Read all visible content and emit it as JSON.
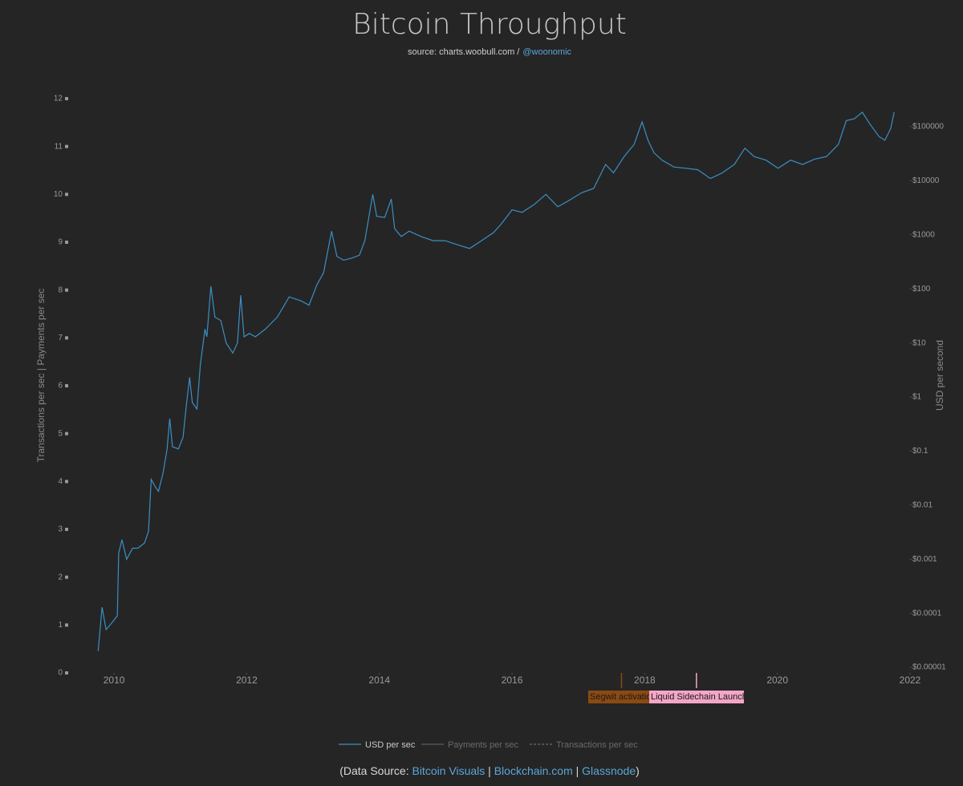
{
  "chart_data": {
    "type": "line",
    "title": "Bitcoin Throughput",
    "subtitle": "source: charts.woobull.com /",
    "subtitle_link": "@woonomic",
    "ylabel": "Transactions per sec  |  Payments per sec",
    "y2label": "USD per second",
    "xlim": [
      2009.43,
      2022
    ],
    "xticks": [
      2010,
      2012,
      2014,
      2016,
      2018,
      2020,
      2022
    ],
    "ylim": [
      0,
      12
    ],
    "yticks": [
      0,
      1,
      2,
      3,
      4,
      5,
      6,
      7,
      8,
      9,
      10,
      11,
      12
    ],
    "y2lim": [
      7.9e-06,
      330000
    ],
    "y2scale": "log",
    "y2ticks": [
      {
        "value": 1e-05,
        "label": "$0.00001"
      },
      {
        "value": 0.0001,
        "label": "$0.0001"
      },
      {
        "value": 0.001,
        "label": "$0.001"
      },
      {
        "value": 0.01,
        "label": "$0.01"
      },
      {
        "value": 0.1,
        "label": "$0.1"
      },
      {
        "value": 1,
        "label": "$1"
      },
      {
        "value": 10,
        "label": "$10"
      },
      {
        "value": 100,
        "label": "$100"
      },
      {
        "value": 1000,
        "label": "$1000"
      },
      {
        "value": 10000,
        "label": "$10000"
      },
      {
        "value": 100000,
        "label": "$100000"
      }
    ],
    "grid": false,
    "x": [
      2009.76,
      2009.82,
      2009.88,
      2009.98,
      2010.05,
      2010.07,
      2010.12,
      2010.19,
      2010.28,
      2010.36,
      2010.46,
      2010.52,
      2010.56,
      2010.62,
      2010.67,
      2010.74,
      2010.8,
      2010.84,
      2010.88,
      2010.97,
      2011.04,
      2011.09,
      2011.14,
      2011.18,
      2011.25,
      2011.3,
      2011.37,
      2011.4,
      2011.46,
      2011.52,
      2011.61,
      2011.69,
      2011.79,
      2011.86,
      2011.91,
      2011.96,
      2012.04,
      2012.13,
      2012.28,
      2012.46,
      2012.64,
      2012.82,
      2012.94,
      2013.06,
      2013.16,
      2013.28,
      2013.36,
      2013.46,
      2013.58,
      2013.7,
      2013.78,
      2013.9,
      2013.96,
      2014.08,
      2014.18,
      2014.23,
      2014.33,
      2014.45,
      2014.63,
      2014.81,
      2014.99,
      2015.17,
      2015.36,
      2015.54,
      2015.72,
      2015.84,
      2016.0,
      2016.15,
      2016.33,
      2016.51,
      2016.69,
      2016.87,
      2017.05,
      2017.23,
      2017.41,
      2017.53,
      2017.69,
      2017.84,
      2017.96,
      2018.05,
      2018.14,
      2018.26,
      2018.44,
      2018.62,
      2018.8,
      2018.99,
      2019.17,
      2019.35,
      2019.51,
      2019.65,
      2019.83,
      2020.01,
      2020.2,
      2020.38,
      2020.56,
      2020.74,
      2020.92,
      2021.04,
      2021.16,
      2021.28,
      2021.4,
      2021.53,
      2021.62,
      2021.71,
      2021.76
    ],
    "series": [
      {
        "name": "USD per sec",
        "color": "#3a8fc4",
        "axis": "y2",
        "visible": true,
        "values": [
          2e-05,
          0.00013,
          5e-05,
          7e-05,
          9e-05,
          0.0013,
          0.0023,
          0.001,
          0.0016,
          0.0016,
          0.002,
          0.0033,
          0.03,
          0.022,
          0.018,
          0.04,
          0.11,
          0.4,
          0.12,
          0.11,
          0.18,
          0.7,
          2.3,
          0.8,
          0.6,
          3.9,
          18,
          13,
          112,
          30,
          26,
          10,
          6.5,
          10,
          76,
          13,
          15,
          13,
          18,
          30,
          71,
          60,
          50,
          120,
          200,
          1170,
          400,
          340,
          370,
          420,
          780,
          5600,
          2200,
          2100,
          4600,
          1300,
          930,
          1170,
          930,
          780,
          780,
          660,
          560,
          780,
          1100,
          1600,
          2900,
          2600,
          3600,
          5600,
          3300,
          4400,
          6000,
          7200,
          20000,
          14000,
          28000,
          47000,
          123000,
          56000,
          33000,
          24000,
          18000,
          17000,
          16000,
          11000,
          14000,
          20000,
          40000,
          28000,
          24000,
          17000,
          24000,
          20000,
          25000,
          28000,
          47000,
          130000,
          140000,
          185000,
          110000,
          66000,
          56000,
          93000,
          185000
        ]
      },
      {
        "name": "Payments per sec",
        "color": "#6b5a4e",
        "visible": false
      },
      {
        "name": "Transactions per sec",
        "color": "#6a6a6a",
        "dash": true,
        "visible": false
      }
    ],
    "annotations": [
      {
        "x": 2017.65,
        "label": "Segwit activation",
        "color": "#8b4a12",
        "text_color": "#1a1a1a"
      },
      {
        "x": 2018.78,
        "label": "Liquid Sidechain Launch",
        "color": "#f4a6c8",
        "text_color": "#1a1a1a"
      }
    ],
    "footer": {
      "prefix": "(Data Source:",
      "links": [
        "Bitcoin Visuals",
        "Blockchain.com",
        "Glassnode"
      ],
      "separator": "|",
      "suffix": ")"
    }
  }
}
